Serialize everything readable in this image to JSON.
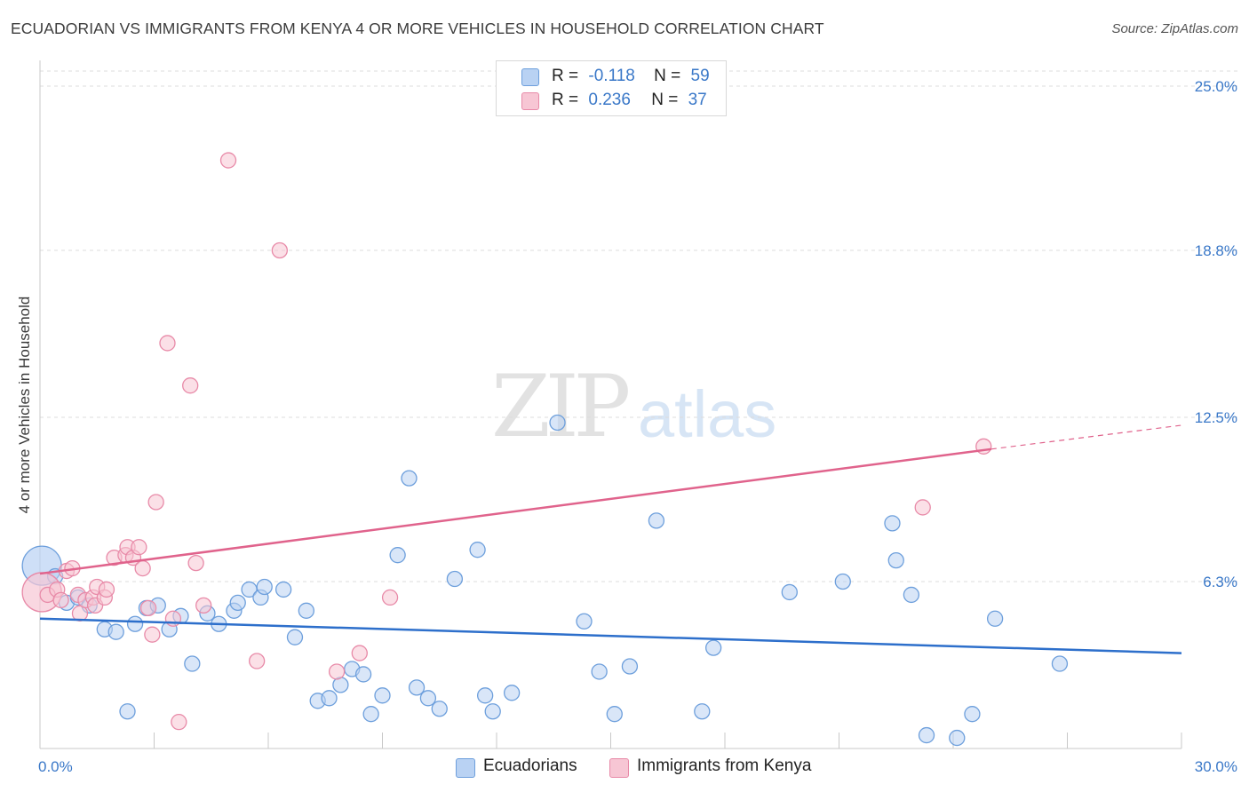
{
  "title": "ECUADORIAN VS IMMIGRANTS FROM KENYA 4 OR MORE VEHICLES IN HOUSEHOLD CORRELATION CHART",
  "source": "Source: ZipAtlas.com",
  "watermark": {
    "zip": "ZIP",
    "atlas": "atlas"
  },
  "legend": {
    "rows": [
      {
        "r_label": "R =",
        "r_value": "-0.118",
        "n_label": "N =",
        "n_value": "59",
        "color": "#b9d2f3"
      },
      {
        "r_label": "R =",
        "r_value": "0.236",
        "n_label": "N =",
        "n_value": "37",
        "color": "#f7c6d4"
      }
    ]
  },
  "bottom_legend": [
    "Ecuadorians",
    "Immigrants from Kenya"
  ],
  "chart_data": {
    "type": "scatter",
    "title": "ECUADORIAN VS IMMIGRANTS FROM KENYA 4 OR MORE VEHICLES IN HOUSEHOLD CORRELATION CHART",
    "xlabel": "",
    "ylabel": "4 or more Vehicles in Household",
    "xlim": [
      0,
      30
    ],
    "ylim": [
      0,
      26
    ],
    "x_tick_labels": [
      "0.0%",
      "30.0%"
    ],
    "y_ticks": [
      6.3,
      12.5,
      18.8,
      25.0
    ],
    "y_tick_labels": [
      "6.3%",
      "12.5%",
      "18.8%",
      "25.0%"
    ],
    "grid": true,
    "legend_position": "top-center",
    "colors": {
      "ecuadorians_fill": "#b9d2f3",
      "ecuadorians_stroke": "#6d9fdc",
      "ecuadorians_line": "#2d6fcb",
      "kenya_fill": "#f7c6d4",
      "kenya_stroke": "#e88aa8",
      "kenya_line": "#e0638c",
      "tick_label": "#3a78c8"
    },
    "series": [
      {
        "name": "Ecuadorians",
        "trend": {
          "x": [
            0,
            30
          ],
          "y": [
            4.9,
            3.6
          ]
        },
        "points": [
          {
            "x": 0.05,
            "y": 6.9,
            "big": true
          },
          {
            "x": 0.4,
            "y": 6.5
          },
          {
            "x": 0.7,
            "y": 5.5
          },
          {
            "x": 1.0,
            "y": 5.7
          },
          {
            "x": 1.3,
            "y": 5.4
          },
          {
            "x": 1.7,
            "y": 4.5
          },
          {
            "x": 2.0,
            "y": 4.4
          },
          {
            "x": 2.3,
            "y": 1.4
          },
          {
            "x": 2.5,
            "y": 4.7
          },
          {
            "x": 2.8,
            "y": 5.3
          },
          {
            "x": 3.1,
            "y": 5.4
          },
          {
            "x": 3.4,
            "y": 4.5
          },
          {
            "x": 3.7,
            "y": 5.0
          },
          {
            "x": 4.0,
            "y": 3.2
          },
          {
            "x": 4.4,
            "y": 5.1
          },
          {
            "x": 4.7,
            "y": 4.7
          },
          {
            "x": 5.1,
            "y": 5.2
          },
          {
            "x": 5.2,
            "y": 5.5
          },
          {
            "x": 5.5,
            "y": 6.0
          },
          {
            "x": 5.8,
            "y": 5.7
          },
          {
            "x": 5.9,
            "y": 6.1
          },
          {
            "x": 6.4,
            "y": 6.0
          },
          {
            "x": 6.7,
            "y": 4.2
          },
          {
            "x": 7.0,
            "y": 5.2
          },
          {
            "x": 7.3,
            "y": 1.8
          },
          {
            "x": 7.6,
            "y": 1.9
          },
          {
            "x": 7.9,
            "y": 2.4
          },
          {
            "x": 8.2,
            "y": 3.0
          },
          {
            "x": 8.5,
            "y": 2.8
          },
          {
            "x": 8.7,
            "y": 1.3
          },
          {
            "x": 9.0,
            "y": 2.0
          },
          {
            "x": 9.4,
            "y": 7.3
          },
          {
            "x": 9.7,
            "y": 10.2
          },
          {
            "x": 9.9,
            "y": 2.3
          },
          {
            "x": 10.2,
            "y": 1.9
          },
          {
            "x": 10.5,
            "y": 1.5
          },
          {
            "x": 10.9,
            "y": 6.4
          },
          {
            "x": 11.5,
            "y": 7.5
          },
          {
            "x": 11.7,
            "y": 2.0
          },
          {
            "x": 11.9,
            "y": 1.4
          },
          {
            "x": 12.4,
            "y": 2.1
          },
          {
            "x": 13.6,
            "y": 12.3
          },
          {
            "x": 14.3,
            "y": 4.8
          },
          {
            "x": 14.7,
            "y": 2.9
          },
          {
            "x": 15.1,
            "y": 1.3
          },
          {
            "x": 15.5,
            "y": 3.1
          },
          {
            "x": 16.2,
            "y": 8.6
          },
          {
            "x": 17.4,
            "y": 1.4
          },
          {
            "x": 17.7,
            "y": 3.8
          },
          {
            "x": 19.7,
            "y": 5.9
          },
          {
            "x": 21.1,
            "y": 6.3
          },
          {
            "x": 22.4,
            "y": 8.5
          },
          {
            "x": 22.5,
            "y": 7.1
          },
          {
            "x": 22.9,
            "y": 5.8
          },
          {
            "x": 23.3,
            "y": 0.5
          },
          {
            "x": 24.1,
            "y": 0.4
          },
          {
            "x": 24.5,
            "y": 1.3
          },
          {
            "x": 25.1,
            "y": 4.9
          },
          {
            "x": 26.8,
            "y": 3.2
          }
        ]
      },
      {
        "name": "Immigrants from Kenya",
        "trend": {
          "x": [
            0,
            25.0
          ],
          "y": [
            6.6,
            11.3
          ],
          "dashed_to": {
            "x": 30,
            "y": 12.2
          }
        },
        "points": [
          {
            "x": 0.05,
            "y": 5.9,
            "big": true
          },
          {
            "x": 0.2,
            "y": 5.8
          },
          {
            "x": 0.45,
            "y": 6.0
          },
          {
            "x": 0.55,
            "y": 5.6
          },
          {
            "x": 0.7,
            "y": 6.7
          },
          {
            "x": 0.85,
            "y": 6.8
          },
          {
            "x": 1.0,
            "y": 5.8
          },
          {
            "x": 1.05,
            "y": 5.1
          },
          {
            "x": 1.2,
            "y": 5.6
          },
          {
            "x": 1.4,
            "y": 5.7
          },
          {
            "x": 1.45,
            "y": 5.4
          },
          {
            "x": 1.5,
            "y": 6.1
          },
          {
            "x": 1.7,
            "y": 5.7
          },
          {
            "x": 1.75,
            "y": 6.0
          },
          {
            "x": 1.95,
            "y": 7.2
          },
          {
            "x": 2.25,
            "y": 7.3
          },
          {
            "x": 2.3,
            "y": 7.6
          },
          {
            "x": 2.45,
            "y": 7.2
          },
          {
            "x": 2.6,
            "y": 7.6
          },
          {
            "x": 2.7,
            "y": 6.8
          },
          {
            "x": 2.85,
            "y": 5.3
          },
          {
            "x": 2.95,
            "y": 4.3
          },
          {
            "x": 3.05,
            "y": 9.3
          },
          {
            "x": 3.35,
            "y": 15.3
          },
          {
            "x": 3.5,
            "y": 4.9
          },
          {
            "x": 3.65,
            "y": 1.0
          },
          {
            "x": 3.95,
            "y": 13.7
          },
          {
            "x": 4.1,
            "y": 7.0
          },
          {
            "x": 4.3,
            "y": 5.4
          },
          {
            "x": 4.95,
            "y": 22.2
          },
          {
            "x": 5.7,
            "y": 3.3
          },
          {
            "x": 6.3,
            "y": 18.8
          },
          {
            "x": 7.8,
            "y": 2.9
          },
          {
            "x": 8.4,
            "y": 3.6
          },
          {
            "x": 23.2,
            "y": 9.1
          },
          {
            "x": 24.8,
            "y": 11.4
          },
          {
            "x": 9.2,
            "y": 5.7
          }
        ]
      }
    ]
  }
}
